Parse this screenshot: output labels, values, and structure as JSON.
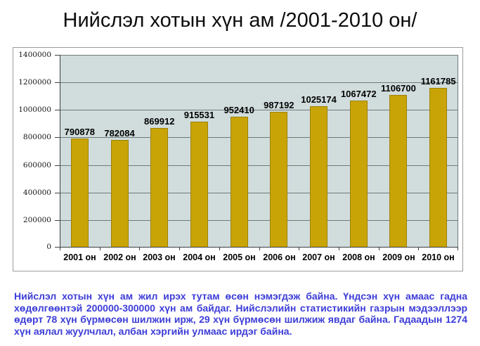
{
  "title": "Нийслэл хотын хүн ам /2001-2010 он/",
  "chart_data": {
    "type": "bar",
    "title": "Нийслэл хотын хүн ам /2001-2010 он/",
    "categories": [
      "2001 он",
      "2002 он",
      "2003 он",
      "2004 он",
      "2005 он",
      "2006 он",
      "2007 он",
      "2008 он",
      "2009 он",
      "2010 он"
    ],
    "values": [
      790878,
      782084,
      869912,
      915531,
      952410,
      987192,
      1025174,
      1067472,
      1106700,
      1161785
    ],
    "data_labels": [
      "790878",
      "782084",
      "869912",
      "915531",
      "952410",
      "987192",
      "1025174",
      "1067472",
      "1106700",
      "1161785"
    ],
    "xlabel": "",
    "ylabel": "",
    "ylim": [
      0,
      1400000
    ],
    "yticks": [
      0,
      200000,
      400000,
      600000,
      800000,
      1000000,
      1200000,
      1400000
    ],
    "ytick_labels": [
      "0",
      "200000",
      "400000",
      "600000",
      "800000",
      "1000000",
      "1200000",
      "1400000"
    ],
    "grid": true,
    "legend": "none",
    "bar_color": "#c9a406",
    "plot_background": "#d1dcdc"
  },
  "footer": {
    "text": "Нийслэл хотын хүн ам жил ирэх тутам өсөн нэмэгдэж байна. Үндсэн хүн амаас гадна хөдөлгөөнтэй 200000-300000 хүн ам байдаг. Нийслэлийн статистикийн газрын мэдээллээр өдөрт 78 хүн бүрмөсөн шилжин ирж, 29 хүн бүрмөсөн шилжиж явдаг байна. Гадаадын 1274 хүн аялал жуулчлал, албан хэргийн улмаас ирдэг байна."
  },
  "colors": {
    "title_text": "#0d0d0d",
    "frame_border": "#9b9b9b",
    "plot_bg": "#d1dcdc",
    "gridline": "#6f7b7b",
    "axis": "#3f3f3f",
    "bar_fill": "#c9a406",
    "bar_border": "#9c8205",
    "footer_text": "#3c3cd8"
  }
}
